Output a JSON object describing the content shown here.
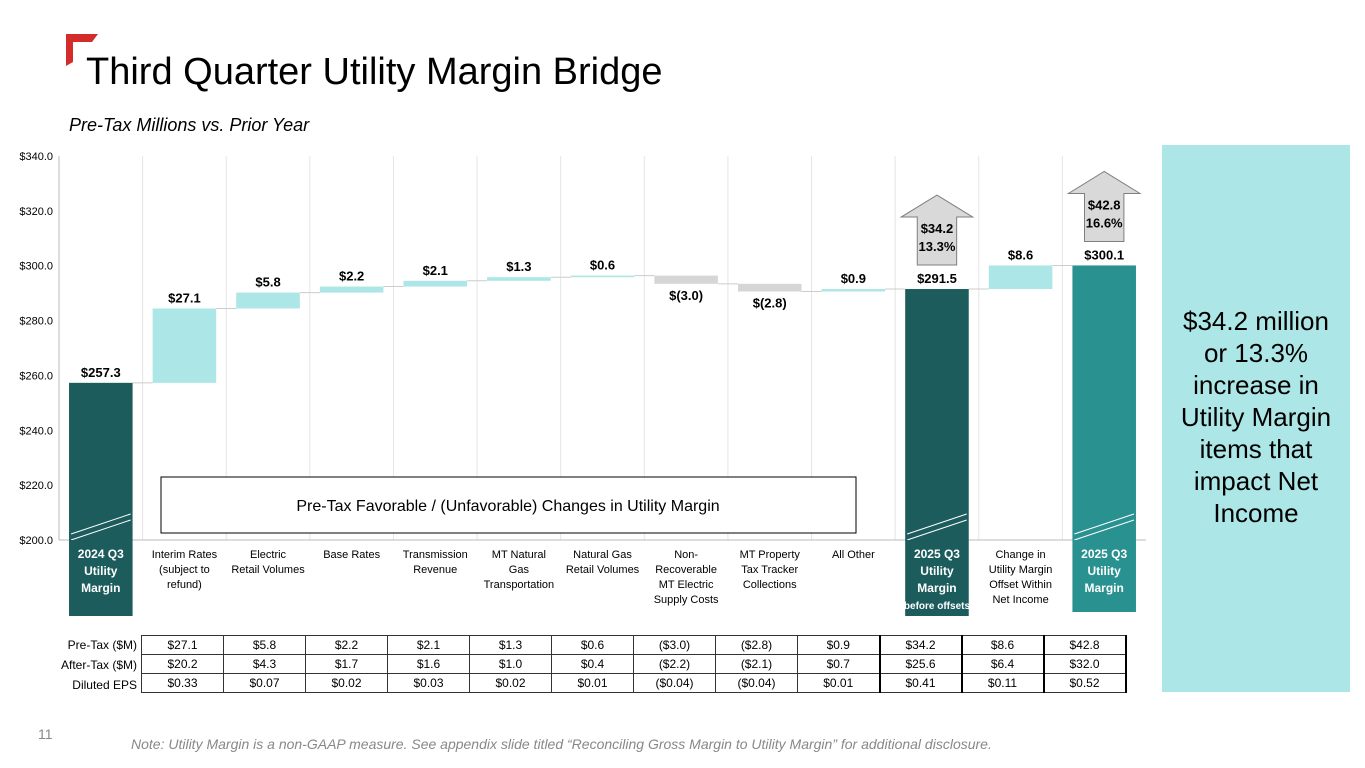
{
  "page": {
    "title": "Third Quarter Utility Margin Bridge",
    "subtitle": "Pre-Tax Millions vs. Prior Year",
    "page_number": "11",
    "note": "Note: Utility Margin is a non-GAAP measure. See appendix slide titled “Reconciling Gross Margin to Utility Margin” for additional disclosure.",
    "callout": "$34.2 million or 13.3% increase in Utility Margin items that impact Net Income",
    "table_row_headers": [
      "Pre-Tax ($M)",
      "After-Tax ($M)",
      "Diluted EPS"
    ]
  },
  "colors": {
    "dark_teal": "#1c5c5c",
    "mid_teal": "#2a9191",
    "light_teal": "#ade6e6",
    "gray": "#d6d6d6",
    "accent_red": "#d42b2b"
  },
  "chart_data": {
    "type": "waterfall",
    "ylim": [
      200,
      340
    ],
    "yticks": [
      200,
      220,
      240,
      260,
      280,
      300,
      320,
      340
    ],
    "ytick_labels": [
      "$200.0",
      "$220.0",
      "$240.0",
      "$260.0",
      "$280.0",
      "$300.0",
      "$320.0",
      "$340.0"
    ],
    "annotation_box": "Pre-Tax Favorable / (Unfavorable) Changes in Utility Margin",
    "arrow_glyph": "↑",
    "categories": [
      {
        "label": "2024 Q3 Utility Margin",
        "kind": "total",
        "start": 200,
        "end": 257.3,
        "value_label": "$257.3",
        "style": "dark"
      },
      {
        "label": "Interim Rates (subject to refund)",
        "kind": "delta",
        "start": 257.3,
        "end": 284.4,
        "value_label": "$27.1",
        "style": "light"
      },
      {
        "label": "Electric Retail Volumes",
        "kind": "delta",
        "start": 284.4,
        "end": 290.2,
        "value_label": "$5.8",
        "style": "light"
      },
      {
        "label": "Base Rates",
        "kind": "delta",
        "start": 290.2,
        "end": 292.4,
        "value_label": "$2.2",
        "style": "light"
      },
      {
        "label": "Transmission Revenue",
        "kind": "delta",
        "start": 292.4,
        "end": 294.5,
        "value_label": "$2.1",
        "style": "light"
      },
      {
        "label": "MT Natural Gas Transportation",
        "kind": "delta",
        "start": 294.5,
        "end": 295.8,
        "value_label": "$1.3",
        "style": "light"
      },
      {
        "label": "Natural Gas Retail Volumes",
        "kind": "delta",
        "start": 295.8,
        "end": 296.4,
        "value_label": "$0.6",
        "style": "light"
      },
      {
        "label": "Non-Recoverable MT Electric Supply Costs",
        "kind": "delta",
        "start": 296.4,
        "end": 293.4,
        "value_label": "$(3.0)",
        "style": "gray"
      },
      {
        "label": "MT Property Tax Tracker Collections",
        "kind": "delta",
        "start": 293.4,
        "end": 290.6,
        "value_label": "$(2.8)",
        "style": "gray"
      },
      {
        "label": "All Other",
        "kind": "delta",
        "start": 290.6,
        "end": 291.5,
        "value_label": "$0.9",
        "style": "light"
      },
      {
        "label": "2025 Q3 Utility Margin (before offsets)",
        "kind": "total",
        "start": 200,
        "end": 291.5,
        "value_label": "$291.5",
        "style": "dark",
        "increase": "$34.2",
        "increase_pct": "13.3%"
      },
      {
        "label": "Change in Utility Margin Offset Within Net Income",
        "kind": "delta",
        "start": 291.5,
        "end": 300.1,
        "value_label": "$8.6",
        "style": "light"
      },
      {
        "label": "2025 Q3 Utility Margin",
        "kind": "total",
        "start": 200,
        "end": 300.1,
        "value_label": "$300.1",
        "style": "mid",
        "increase": "$42.8",
        "increase_pct": "16.6%"
      }
    ],
    "cat_label_lines": [
      [
        "2024 Q3",
        "Utility",
        "Margin"
      ],
      [
        "Interim Rates",
        "(subject to",
        "refund)"
      ],
      [
        "Electric",
        "Retail Volumes"
      ],
      [
        "Base Rates"
      ],
      [
        "Transmission",
        "Revenue"
      ],
      [
        "MT Natural",
        "Gas",
        "Transportation"
      ],
      [
        "Natural Gas",
        "Retail Volumes"
      ],
      [
        "Non-",
        "Recoverable",
        "MT Electric",
        "Supply Costs"
      ],
      [
        "MT Property",
        "Tax Tracker",
        "Collections"
      ],
      [
        "All Other"
      ],
      [
        "2025 Q3",
        "Utility",
        "Margin",
        "(before offsets)"
      ],
      [
        "Change in",
        "Utility Margin",
        "Offset Within",
        "Net Income"
      ],
      [
        "2025 Q3",
        "Utility",
        "Margin"
      ]
    ],
    "table": {
      "pre_tax": [
        "$27.1",
        "$5.8",
        "$2.2",
        "$2.1",
        "$1.3",
        "$0.6",
        "($3.0)",
        "($2.8)",
        "$0.9",
        "$34.2",
        "$8.6",
        "$42.8"
      ],
      "after_tax": [
        "$20.2",
        "$4.3",
        "$1.7",
        "$1.6",
        "$1.0",
        "$0.4",
        "($2.2)",
        "($2.1)",
        "$0.7",
        "$25.6",
        "$6.4",
        "$32.0"
      ],
      "diluted_eps": [
        "$0.33",
        "$0.07",
        "$0.02",
        "$0.03",
        "$0.02",
        "$0.01",
        "($0.04)",
        "($0.04)",
        "$0.01",
        "$0.41",
        "$0.11",
        "$0.52"
      ]
    }
  }
}
